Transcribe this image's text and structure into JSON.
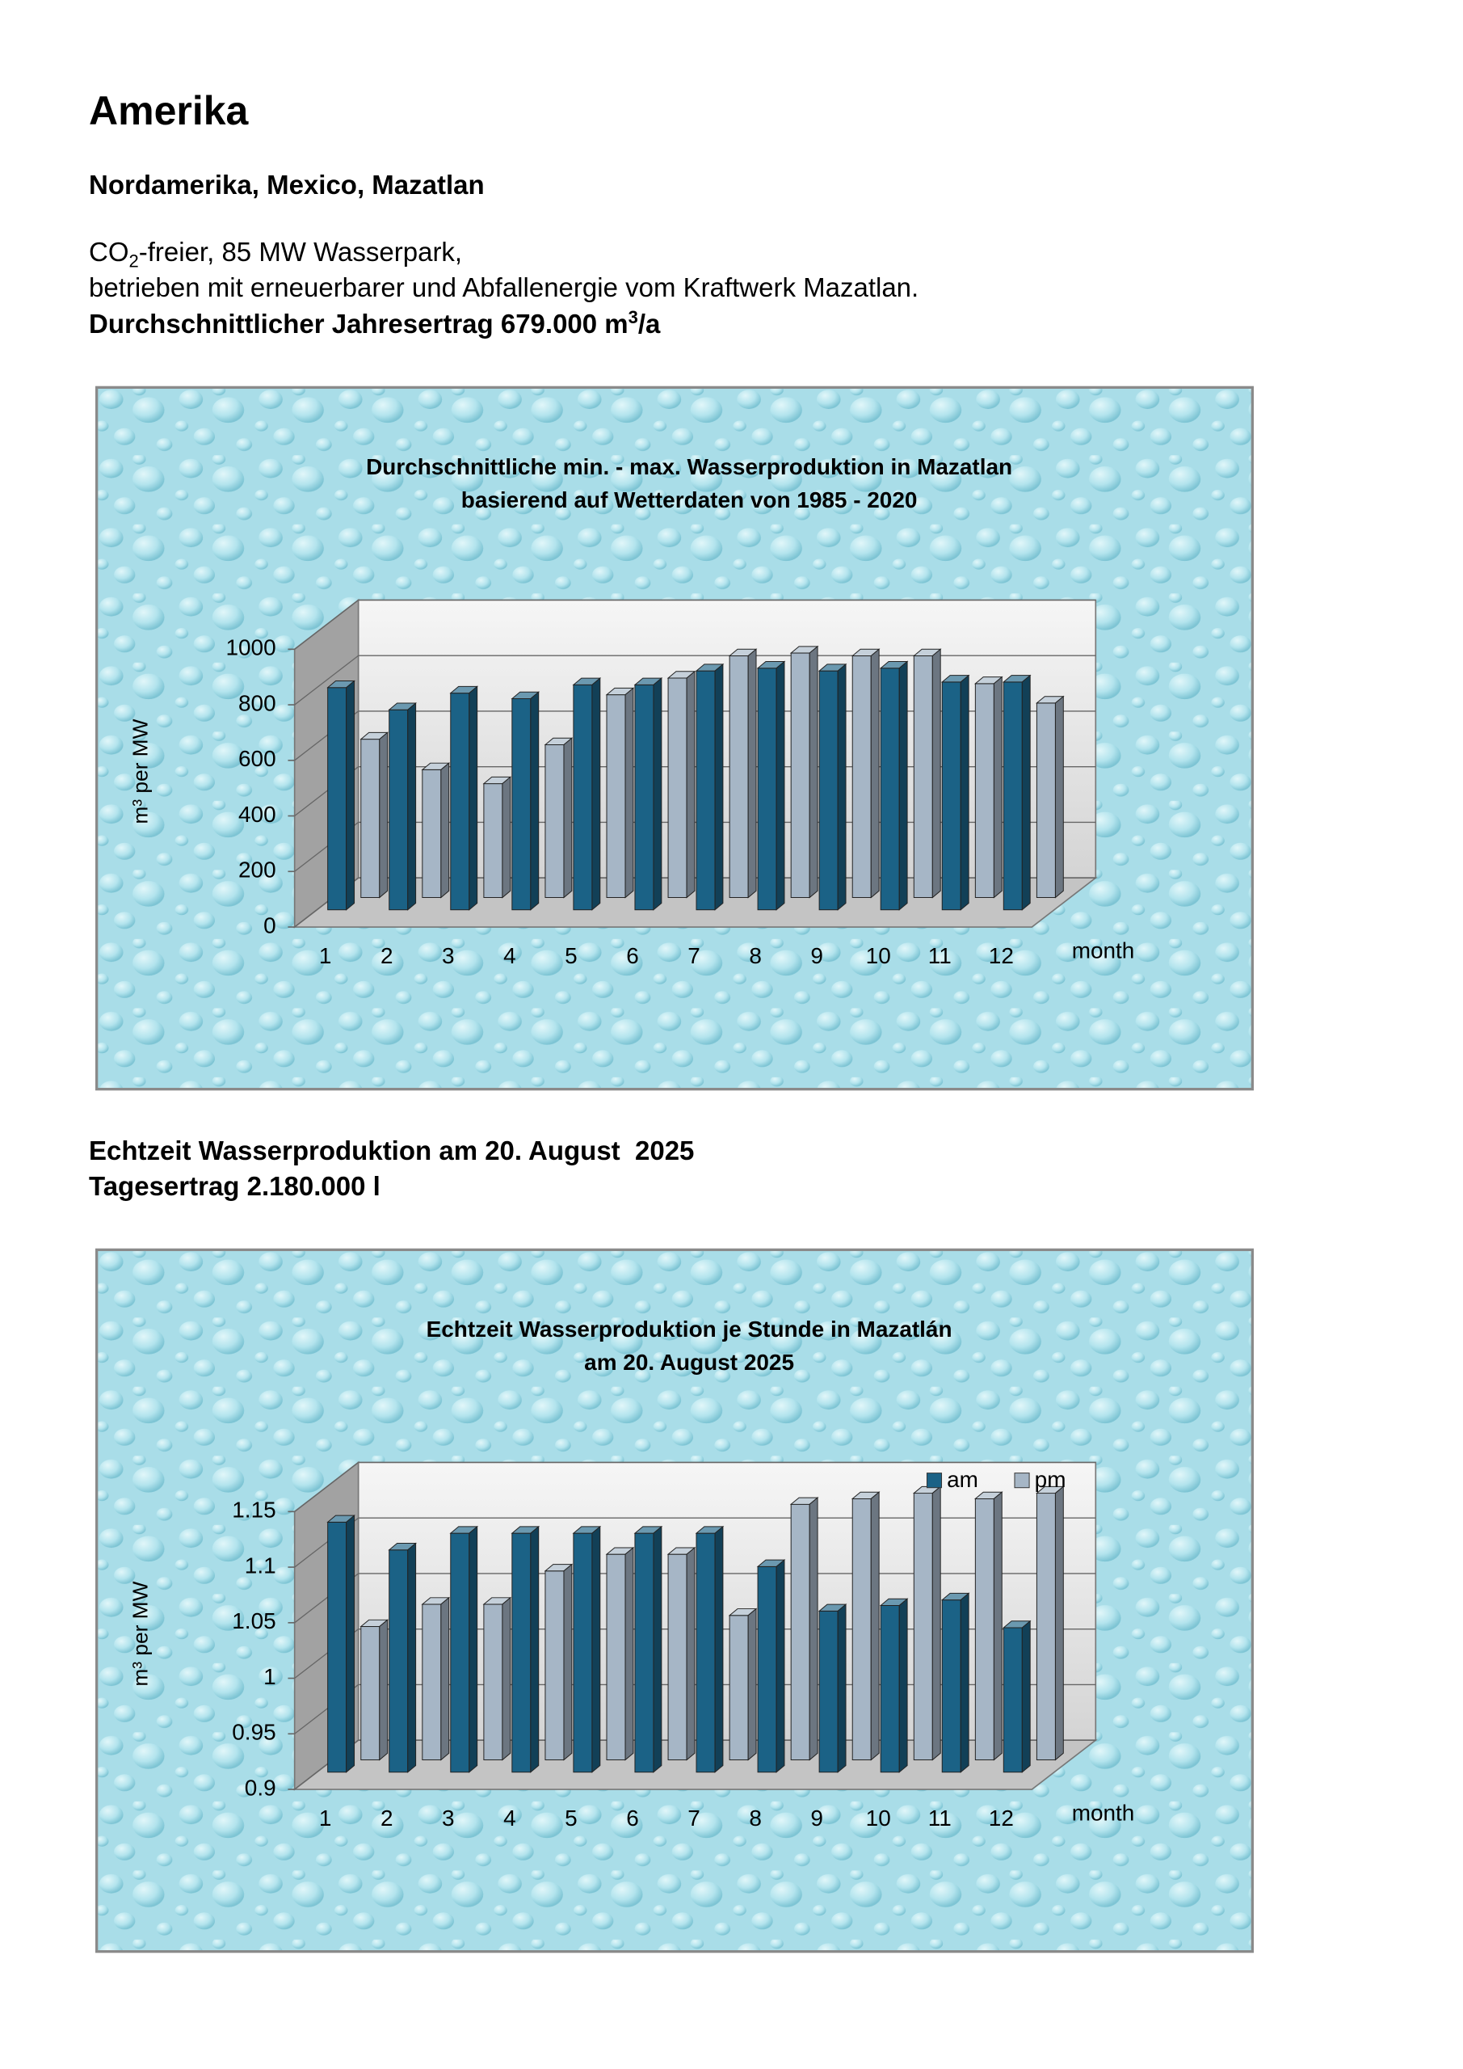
{
  "document": {
    "heading": "Amerika",
    "region": "Nordamerika, Mexico, Mazatlan",
    "line1": {
      "text": "CO",
      "sub": "2",
      "rest": "-freier, 85 MW Wasserpark,"
    },
    "line2": "betrieben mit erneuerbarer und Abfallenergie vom Kraftwerk Mazatlan.",
    "line3": {
      "text": "Durchschnittlicher Jahresertrag 679.000 m",
      "sup": "3",
      "rest": "/a"
    },
    "realtime": "Echtzeit Wasserproduktion am 20. August  2025",
    "daily": "Tagesertrag 2.180.000 l"
  },
  "chart_data": [
    {
      "type": "bar3d",
      "title": "Durchschnittliche min. - max. Wasserproduktion in Mazatlan",
      "subtitle": "basierend auf Wetterdaten von 1985 - 2020",
      "ylabel": "m³ per MW",
      "xlabel": "month",
      "categories": [
        "1",
        "2",
        "3",
        "4",
        "5",
        "6",
        "7",
        "8",
        "9",
        "10",
        "11",
        "12"
      ],
      "series": [
        {
          "color": "#1b6286",
          "values": [
            800,
            720,
            780,
            760,
            810,
            810,
            860,
            870,
            860,
            870,
            820,
            820
          ]
        },
        {
          "color": "#a6b6c6",
          "values": [
            570,
            460,
            410,
            550,
            730,
            790,
            870,
            880,
            870,
            870,
            770,
            700
          ]
        }
      ],
      "ylim": [
        0,
        1000
      ],
      "yticks": [
        0,
        200,
        400,
        600,
        800,
        1000
      ],
      "grid": true
    },
    {
      "type": "bar3d",
      "title": "Echtzeit Wasserproduktion je Stunde in Mazatlán",
      "subtitle": "am 20. August 2025",
      "ylabel": "m³ per MW",
      "xlabel": "month",
      "categories": [
        "1",
        "2",
        "3",
        "4",
        "5",
        "6",
        "7",
        "8",
        "9",
        "10",
        "11",
        "12"
      ],
      "series": [
        {
          "name": "am",
          "color": "#1b6286",
          "values": [
            1.125,
            1.1,
            1.115,
            1.115,
            1.115,
            1.115,
            1.115,
            1.085,
            1.045,
            1.05,
            1.055,
            1.03
          ]
        },
        {
          "name": "pm",
          "color": "#a6b6c6",
          "values": [
            1.02,
            1.04,
            1.04,
            1.07,
            1.085,
            1.085,
            1.03,
            1.13,
            1.135,
            1.14,
            1.135,
            1.14
          ]
        }
      ],
      "ylim": [
        0.9,
        1.15
      ],
      "yticks": [
        0.9,
        0.95,
        1,
        1.05,
        1.1,
        1.15
      ],
      "grid": true,
      "legend": "top-right"
    }
  ]
}
